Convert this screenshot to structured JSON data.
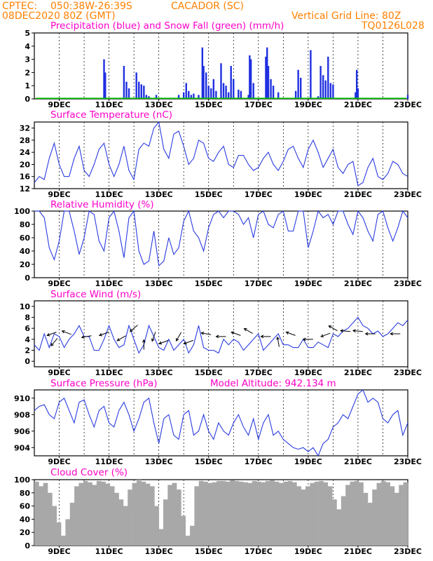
{
  "header": {
    "center": "CPTEC:",
    "coords": "050:38W-26:39S",
    "location": "CACADOR (SC)",
    "run": "08DEC2020 80Z (GMT)",
    "grid_note": "Vertical Grid Line: 80Z",
    "product": "TQ0126L028"
  },
  "colors": {
    "header_text": "#ff8000",
    "panel_title": "#ff00c8",
    "precipitation": "#1f2fe0",
    "snow": "#00c000",
    "line": "#2a3ce0",
    "cloud": "#a8a8a8"
  },
  "x_axis_labels": [
    "9DEC",
    "11DEC",
    "13DEC",
    "15DEC",
    "17DEC",
    "19DEC",
    "21DEC",
    "23DEC"
  ],
  "chart_data": [
    {
      "type": "bar",
      "title": "Precipitation (blue) and Snow Fall (green) (mm/h)",
      "ylim": [
        0,
        5
      ],
      "yticks": [
        0,
        1,
        2,
        3,
        4,
        5
      ],
      "x_days_range": [
        8.0,
        23.0
      ],
      "series": [
        {
          "name": "Precipitation (blue)",
          "x": [
            10.8,
            10.85,
            11.6,
            11.7,
            11.8,
            12.1,
            12.2,
            12.3,
            12.4,
            12.5,
            12.6,
            12.9,
            13.8,
            14.0,
            14.1,
            14.2,
            14.3,
            14.4,
            14.6,
            14.75,
            14.8,
            14.9,
            15.0,
            15.1,
            15.2,
            15.3,
            15.5,
            15.6,
            15.7,
            15.8,
            15.9,
            16.0,
            16.2,
            16.3,
            16.6,
            16.65,
            16.7,
            16.8,
            17.3,
            17.35,
            17.4,
            17.5,
            17.6,
            17.8,
            18.5,
            18.6,
            18.7,
            19.1,
            19.4,
            19.5,
            19.6,
            19.7,
            19.8,
            19.9,
            20.0,
            20.9,
            20.95,
            21.0,
            23.0
          ],
          "values": [
            3.0,
            2.0,
            2.5,
            1.3,
            0.8,
            2.0,
            1.3,
            1.1,
            1.0,
            0.3,
            0.2,
            0.3,
            0.3,
            0.5,
            1.2,
            0.6,
            0.3,
            0.4,
            0.3,
            3.9,
            2.5,
            2.0,
            1.0,
            0.8,
            1.5,
            0.6,
            2.7,
            1.2,
            1.0,
            0.5,
            2.5,
            1.5,
            0.7,
            0.6,
            0.3,
            3.3,
            3.0,
            1.2,
            3.2,
            3.9,
            2.5,
            1.5,
            1.0,
            0.5,
            0.6,
            2.2,
            1.6,
            3.7,
            0.2,
            2.5,
            1.8,
            1.4,
            3.2,
            1.2,
            1.1,
            0.5,
            2.2,
            0.8,
            0.3
          ]
        },
        {
          "name": "Snow Fall (green)",
          "x": [],
          "values": []
        }
      ]
    },
    {
      "type": "line",
      "title": "Surface Temperature (nC)",
      "ylim": [
        12,
        34
      ],
      "yticks": [
        12,
        16,
        20,
        24,
        28,
        32
      ],
      "x": [
        8.0,
        8.2,
        8.4,
        8.6,
        8.8,
        9.0,
        9.2,
        9.4,
        9.6,
        9.8,
        10.0,
        10.2,
        10.4,
        10.6,
        10.8,
        11.0,
        11.2,
        11.4,
        11.6,
        11.8,
        12.0,
        12.2,
        12.4,
        12.6,
        12.8,
        13.0,
        13.2,
        13.4,
        13.6,
        13.8,
        14.0,
        14.2,
        14.4,
        14.6,
        14.8,
        15.0,
        15.2,
        15.4,
        15.6,
        15.8,
        16.0,
        16.2,
        16.4,
        16.6,
        16.8,
        17.0,
        17.2,
        17.4,
        17.6,
        17.8,
        18.0,
        18.2,
        18.4,
        18.6,
        18.8,
        19.0,
        19.2,
        19.4,
        19.6,
        19.8,
        20.0,
        20.2,
        20.4,
        20.6,
        20.8,
        21.0,
        21.2,
        21.4,
        21.6,
        21.8,
        22.0,
        22.2,
        22.4,
        22.6,
        22.8,
        23.0
      ],
      "values": [
        14.0,
        16.0,
        15.0,
        22.0,
        27.0,
        20.0,
        16.0,
        16.0,
        22.0,
        26.0,
        18.0,
        16.0,
        20.0,
        25.0,
        27.0,
        20.0,
        16.0,
        20.0,
        26.0,
        18.0,
        15.0,
        25.0,
        27.0,
        26.0,
        32.0,
        34.0,
        25.0,
        22.0,
        30.0,
        31.0,
        26.0,
        20.0,
        22.0,
        28.0,
        27.0,
        22.0,
        21.0,
        24.0,
        26.0,
        20.0,
        19.0,
        23.0,
        23.0,
        20.0,
        18.0,
        19.0,
        22.0,
        24.0,
        20.0,
        18.0,
        21.0,
        25.0,
        26.0,
        22.0,
        19.0,
        25.0,
        28.0,
        24.0,
        19.0,
        22.0,
        25.0,
        19.0,
        17.0,
        20.0,
        21.0,
        13.0,
        14.0,
        19.0,
        22.0,
        16.0,
        15.0,
        17.0,
        21.0,
        20.0,
        17.0,
        16.0
      ]
    },
    {
      "type": "line",
      "title": "Relative Humidity (%)",
      "ylim": [
        0,
        100
      ],
      "yticks": [
        0,
        20,
        40,
        60,
        80,
        100
      ],
      "x": [
        8.0,
        8.2,
        8.4,
        8.6,
        8.8,
        9.0,
        9.2,
        9.4,
        9.6,
        9.8,
        10.0,
        10.2,
        10.4,
        10.6,
        10.8,
        11.0,
        11.2,
        11.4,
        11.6,
        11.8,
        12.0,
        12.2,
        12.4,
        12.6,
        12.8,
        13.0,
        13.2,
        13.4,
        13.6,
        13.8,
        14.0,
        14.2,
        14.4,
        14.6,
        14.8,
        15.0,
        15.2,
        15.4,
        15.6,
        15.8,
        16.0,
        16.2,
        16.4,
        16.6,
        16.8,
        17.0,
        17.2,
        17.4,
        17.6,
        17.8,
        18.0,
        18.2,
        18.4,
        18.6,
        18.8,
        19.0,
        19.2,
        19.4,
        19.6,
        19.8,
        20.0,
        20.2,
        20.4,
        20.6,
        20.8,
        21.0,
        21.2,
        21.4,
        21.6,
        21.8,
        22.0,
        22.2,
        22.4,
        22.6,
        22.8,
        23.0
      ],
      "values": [
        100.0,
        100.0,
        90.0,
        45.0,
        27.0,
        55.0,
        100.0,
        100.0,
        70.0,
        35.0,
        60.0,
        100.0,
        95.0,
        55.0,
        40.0,
        90.0,
        100.0,
        70.0,
        30.0,
        90.0,
        100.0,
        40.0,
        20.0,
        25.0,
        70.0,
        18.0,
        25.0,
        60.0,
        35.0,
        45.0,
        85.0,
        100.0,
        70.0,
        60.0,
        40.0,
        75.0,
        95.0,
        100.0,
        90.0,
        100.0,
        100.0,
        95.0,
        80.0,
        90.0,
        60.0,
        95.0,
        100.0,
        80.0,
        75.0,
        95.0,
        100.0,
        70.0,
        70.0,
        100.0,
        100.0,
        45.0,
        70.0,
        100.0,
        90.0,
        95.0,
        80.0,
        100.0,
        100.0,
        80.0,
        65.0,
        100.0,
        90.0,
        70.0,
        55.0,
        95.0,
        100.0,
        75.0,
        55.0,
        75.0,
        100.0,
        90.0
      ]
    },
    {
      "type": "line",
      "title": "Surface Wind (m/s)",
      "ylim": [
        -1,
        11
      ],
      "yticks": [
        0,
        2,
        4,
        6,
        8,
        10
      ],
      "x": [
        8.0,
        8.2,
        8.4,
        8.6,
        8.8,
        9.0,
        9.2,
        9.4,
        9.6,
        9.8,
        10.0,
        10.2,
        10.4,
        10.6,
        10.8,
        11.0,
        11.2,
        11.4,
        11.6,
        11.8,
        12.0,
        12.2,
        12.4,
        12.6,
        12.8,
        13.0,
        13.2,
        13.4,
        13.6,
        13.8,
        14.0,
        14.2,
        14.4,
        14.6,
        14.8,
        15.0,
        15.2,
        15.4,
        15.6,
        15.8,
        16.0,
        16.2,
        16.4,
        16.6,
        16.8,
        17.0,
        17.2,
        17.4,
        17.6,
        17.8,
        18.0,
        18.2,
        18.4,
        18.6,
        18.8,
        19.0,
        19.2,
        19.4,
        19.6,
        19.8,
        20.0,
        20.2,
        20.4,
        20.6,
        20.8,
        21.0,
        21.2,
        21.4,
        21.6,
        21.8,
        22.0,
        22.2,
        22.4,
        22.6,
        22.8,
        23.0
      ],
      "values": [
        3.0,
        2.0,
        5.0,
        2.5,
        5.0,
        4.5,
        2.5,
        4.0,
        5.0,
        6.5,
        4.5,
        4.5,
        2.0,
        2.0,
        4.0,
        6.5,
        4.0,
        2.5,
        3.0,
        6.5,
        4.0,
        1.5,
        3.0,
        6.5,
        4.5,
        2.5,
        2.0,
        4.0,
        2.0,
        3.0,
        4.0,
        1.5,
        3.0,
        6.5,
        2.5,
        2.0,
        2.0,
        1.5,
        4.0,
        3.0,
        4.0,
        3.5,
        2.0,
        3.0,
        4.0,
        5.0,
        2.0,
        3.0,
        4.0,
        5.0,
        3.0,
        3.0,
        2.5,
        2.5,
        4.0,
        2.5,
        2.5,
        3.5,
        3.0,
        2.5,
        5.0,
        4.5,
        5.5,
        6.0,
        7.0,
        8.0,
        6.5,
        6.0,
        5.0,
        5.5,
        4.5,
        5.0,
        6.0,
        7.0,
        6.5,
        7.5
      ]
    },
    {
      "type": "line",
      "title": "Surface Pressure (hPa)",
      "subtitle": "Model Altitude: 942.134 m",
      "ylim": [
        903,
        911
      ],
      "yticks": [
        904,
        906,
        908,
        910
      ],
      "x": [
        8.0,
        8.2,
        8.4,
        8.6,
        8.8,
        9.0,
        9.2,
        9.4,
        9.6,
        9.8,
        10.0,
        10.2,
        10.4,
        10.6,
        10.8,
        11.0,
        11.2,
        11.4,
        11.6,
        11.8,
        12.0,
        12.2,
        12.4,
        12.6,
        12.8,
        13.0,
        13.2,
        13.4,
        13.6,
        13.8,
        14.0,
        14.2,
        14.4,
        14.6,
        14.8,
        15.0,
        15.2,
        15.4,
        15.6,
        15.8,
        16.0,
        16.2,
        16.4,
        16.6,
        16.8,
        17.0,
        17.2,
        17.4,
        17.6,
        17.8,
        18.0,
        18.2,
        18.4,
        18.6,
        18.8,
        19.0,
        19.2,
        19.4,
        19.6,
        19.8,
        20.0,
        20.2,
        20.4,
        20.6,
        20.8,
        21.0,
        21.2,
        21.4,
        21.6,
        21.8,
        22.0,
        22.2,
        22.4,
        22.6,
        22.8,
        23.0
      ],
      "values": [
        908.5,
        909.0,
        909.2,
        908.0,
        907.5,
        909.5,
        910.0,
        908.5,
        907.0,
        909.5,
        909.8,
        908.0,
        906.5,
        908.5,
        909.0,
        907.0,
        906.5,
        908.5,
        909.5,
        908.0,
        906.0,
        907.5,
        909.5,
        910.0,
        907.0,
        904.5,
        907.5,
        908.0,
        905.5,
        905.0,
        908.0,
        908.5,
        905.5,
        906.0,
        908.0,
        906.0,
        905.0,
        907.0,
        906.0,
        905.5,
        907.0,
        908.0,
        906.5,
        905.5,
        907.5,
        905.0,
        907.0,
        908.0,
        905.5,
        906.0,
        905.0,
        904.5,
        904.0,
        903.8,
        904.0,
        903.5,
        904.0,
        903.0,
        904.5,
        905.0,
        906.5,
        907.0,
        908.0,
        907.5,
        909.0,
        910.5,
        911.0,
        909.5,
        910.0,
        909.5,
        907.5,
        907.0,
        908.0,
        908.5,
        905.5,
        907.0
      ]
    },
    {
      "type": "bar",
      "title": "Cloud Cover (%)",
      "ylim": [
        0,
        100
      ],
      "yticks": [
        0,
        20,
        40,
        60,
        80,
        100
      ],
      "x_days_range": [
        8.0,
        23.0
      ],
      "values": [
        97,
        90,
        95,
        80,
        60,
        35,
        15,
        40,
        65,
        90,
        95,
        98,
        96,
        92,
        98,
        97,
        94,
        90,
        80,
        70,
        60,
        85,
        95,
        100,
        97,
        94,
        90,
        60,
        25,
        70,
        92,
        95,
        85,
        45,
        15,
        30,
        90,
        98,
        97,
        95,
        96,
        98,
        98,
        97,
        99,
        98,
        97,
        96,
        95,
        98,
        97,
        96,
        98,
        99,
        97,
        95,
        97,
        98,
        96,
        90,
        85,
        90,
        95,
        97,
        98,
        96,
        90,
        70,
        55,
        75,
        92,
        97,
        98,
        96,
        80,
        65,
        85,
        95,
        98,
        96,
        90,
        80,
        92,
        96
      ]
    }
  ],
  "panel5_extra": {
    "wind_arrows": [
      {
        "x": 8.7,
        "y": 5.0,
        "angle_deg": 200
      },
      {
        "x": 8.8,
        "y": 3.5,
        "angle_deg": 230
      },
      {
        "x": 9.3,
        "y": 5.2,
        "angle_deg": 160
      },
      {
        "x": 10.1,
        "y": 4.5,
        "angle_deg": 190
      },
      {
        "x": 10.8,
        "y": 5.0,
        "angle_deg": 200
      },
      {
        "x": 11.5,
        "y": 4.2,
        "angle_deg": 210
      },
      {
        "x": 12.0,
        "y": 6.0,
        "angle_deg": 220
      },
      {
        "x": 12.4,
        "y": 3.0,
        "angle_deg": 90
      },
      {
        "x": 12.8,
        "y": 4.5,
        "angle_deg": 250
      },
      {
        "x": 13.2,
        "y": 3.5,
        "angle_deg": 200
      },
      {
        "x": 13.8,
        "y": 4.5,
        "angle_deg": 240
      },
      {
        "x": 14.2,
        "y": 3.5,
        "angle_deg": 200
      },
      {
        "x": 14.9,
        "y": 5.0,
        "angle_deg": 170
      },
      {
        "x": 15.5,
        "y": 4.5,
        "angle_deg": 180
      },
      {
        "x": 16.1,
        "y": 5.0,
        "angle_deg": 160
      },
      {
        "x": 16.6,
        "y": 5.5,
        "angle_deg": 150
      },
      {
        "x": 17.3,
        "y": 4.5,
        "angle_deg": 180
      },
      {
        "x": 17.8,
        "y": 3.5,
        "angle_deg": 100
      },
      {
        "x": 18.3,
        "y": 5.0,
        "angle_deg": 160
      },
      {
        "x": 19.0,
        "y": 4.0,
        "angle_deg": 180
      },
      {
        "x": 19.7,
        "y": 4.8,
        "angle_deg": 200
      },
      {
        "x": 20.0,
        "y": 6.0,
        "angle_deg": 150
      },
      {
        "x": 20.5,
        "y": 5.5,
        "angle_deg": 175
      },
      {
        "x": 21.0,
        "y": 5.5,
        "angle_deg": 175
      },
      {
        "x": 21.5,
        "y": 5.0,
        "angle_deg": 180
      },
      {
        "x": 22.5,
        "y": 5.0,
        "angle_deg": 180
      }
    ]
  }
}
